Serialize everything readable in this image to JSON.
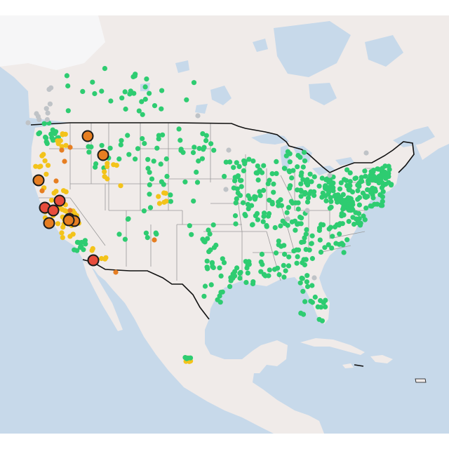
{
  "map": {
    "colors": {
      "ocean": "#c7d9ea",
      "land": "#f0ebe9",
      "snow": "#f6f6f7",
      "lake": "#c7d9ea",
      "state_border": "#9a9a9a",
      "country_border": "#111111",
      "good": "#2ecc71",
      "moderate": "#f3c31a",
      "usg": "#e67e22",
      "unhealthy": "#e74c3c",
      "nodata": "#bfc3c7",
      "marker_outline": "#1a1a1a"
    },
    "legend_levels": [
      "good",
      "moderate",
      "usg",
      "unhealthy",
      "nodata"
    ],
    "highlight_markers": [
      {
        "id": "m1",
        "level": "usg"
      },
      {
        "id": "m2",
        "level": "usg"
      },
      {
        "id": "m3",
        "level": "usg"
      },
      {
        "id": "m4",
        "level": "unhealthy"
      },
      {
        "id": "m5",
        "level": "unhealthy"
      },
      {
        "id": "m6",
        "level": "unhealthy"
      },
      {
        "id": "m7",
        "level": "unhealthy"
      },
      {
        "id": "m8",
        "level": "usg"
      },
      {
        "id": "m9",
        "level": "usg"
      },
      {
        "id": "m10",
        "level": "usg"
      },
      {
        "id": "m11",
        "level": "unhealthy"
      }
    ],
    "icons": [
      "puerto-rico-shape"
    ]
  }
}
